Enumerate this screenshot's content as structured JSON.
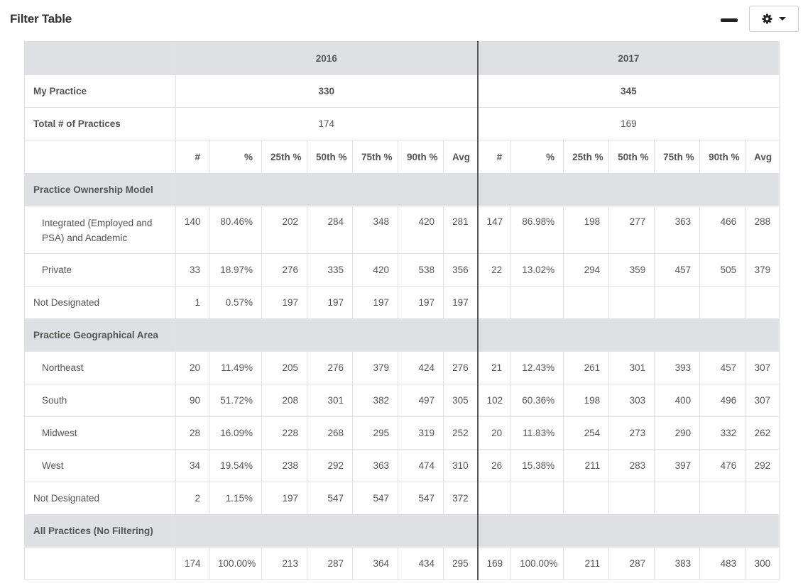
{
  "header": {
    "title": "Filter Table"
  },
  "years": [
    "2016",
    "2017"
  ],
  "my_practice": {
    "label": "My Practice",
    "values": [
      "330",
      "345"
    ]
  },
  "total_practices": {
    "label": "Total # of Practices",
    "values": [
      "174",
      "169"
    ]
  },
  "columns": [
    "#",
    "%",
    "25th %",
    "50th %",
    "75th %",
    "90th %",
    "Avg"
  ],
  "sections": [
    {
      "title": "Practice Ownership Model",
      "rows": [
        {
          "label": "Integrated (Employed and PSA) and Academic",
          "indent": true,
          "tall": true,
          "v2016": [
            "140",
            "80.46%",
            "202",
            "284",
            "348",
            "420",
            "281"
          ],
          "v2017": [
            "147",
            "86.98%",
            "198",
            "277",
            "363",
            "466",
            "288"
          ]
        },
        {
          "label": "Private",
          "indent": true,
          "tall": false,
          "v2016": [
            "33",
            "18.97%",
            "276",
            "335",
            "420",
            "538",
            "356"
          ],
          "v2017": [
            "22",
            "13.02%",
            "294",
            "359",
            "457",
            "505",
            "379"
          ]
        },
        {
          "label": "Not Designated",
          "indent": false,
          "tall": false,
          "v2016": [
            "1",
            "0.57%",
            "197",
            "197",
            "197",
            "197",
            "197"
          ],
          "v2017": [
            "",
            "",
            "",
            "",
            "",
            "",
            ""
          ]
        }
      ]
    },
    {
      "title": "Practice Geographical Area",
      "rows": [
        {
          "label": "Northeast",
          "indent": true,
          "tall": false,
          "v2016": [
            "20",
            "11.49%",
            "205",
            "276",
            "379",
            "424",
            "276"
          ],
          "v2017": [
            "21",
            "12.43%",
            "261",
            "301",
            "393",
            "457",
            "307"
          ]
        },
        {
          "label": "South",
          "indent": true,
          "tall": false,
          "v2016": [
            "90",
            "51.72%",
            "208",
            "301",
            "382",
            "497",
            "305"
          ],
          "v2017": [
            "102",
            "60.36%",
            "198",
            "303",
            "400",
            "496",
            "307"
          ]
        },
        {
          "label": "Midwest",
          "indent": true,
          "tall": false,
          "v2016": [
            "28",
            "16.09%",
            "228",
            "268",
            "295",
            "319",
            "252"
          ],
          "v2017": [
            "20",
            "11.83%",
            "254",
            "273",
            "290",
            "332",
            "262"
          ]
        },
        {
          "label": "West",
          "indent": true,
          "tall": false,
          "v2016": [
            "34",
            "19.54%",
            "238",
            "292",
            "363",
            "474",
            "310"
          ],
          "v2017": [
            "26",
            "15.38%",
            "211",
            "283",
            "397",
            "476",
            "292"
          ]
        },
        {
          "label": "Not Designated",
          "indent": false,
          "tall": false,
          "v2016": [
            "2",
            "1.15%",
            "197",
            "547",
            "547",
            "547",
            "372"
          ],
          "v2017": [
            "",
            "",
            "",
            "",
            "",
            "",
            ""
          ]
        }
      ]
    },
    {
      "title": "All Practices (No Filtering)",
      "rows": [
        {
          "label": "",
          "indent": false,
          "tall": false,
          "v2016": [
            "174",
            "100.00%",
            "213",
            "287",
            "364",
            "434",
            "295"
          ],
          "v2017": [
            "169",
            "100.00%",
            "211",
            "287",
            "383",
            "483",
            "300"
          ]
        }
      ]
    }
  ],
  "icons": {
    "settings": "gear-icon",
    "dropdown": "caret-down-icon",
    "minimize": "minimize-icon"
  }
}
